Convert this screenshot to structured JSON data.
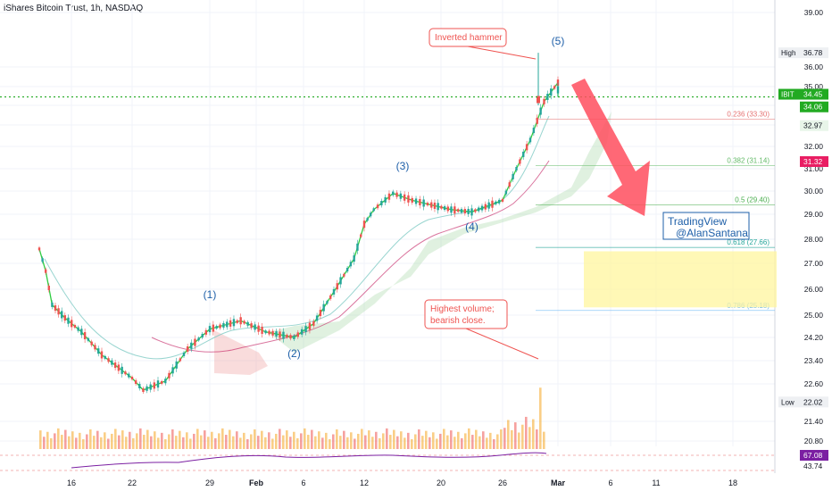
{
  "header": {
    "title": "iShares Bitcoin Trust, 1h, NASDAQ"
  },
  "colors": {
    "up": "#26a69a",
    "down": "#ef5350",
    "ma_fast": "#2ecc40",
    "ma_slow": "#c2185b",
    "cloud_up": "#a5d6a7",
    "cloud_down": "#ef9a9a",
    "price_line": "#22aa22",
    "fib_0236": "#e57373",
    "fib_0382": "#66bb6a",
    "fib_05": "#4caf50",
    "fib_0618": "#26a69a",
    "fib_0786": "#64b5f6",
    "arrow": "#ff4d5e",
    "box": "#fff59d",
    "wave": "#1e5fa8"
  },
  "chart_data": {
    "type": "line",
    "title": "iShares Bitcoin Trust, 1h, NASDAQ",
    "x_ticks": [
      "16",
      "22",
      "29",
      "Feb",
      "6",
      "12",
      "20",
      "26",
      "Mar",
      "6",
      "11",
      "18"
    ],
    "y_ticks": [
      20.8,
      21.4,
      22.6,
      23.4,
      24.2,
      25.0,
      26.0,
      27.0,
      28.0,
      29.0,
      30.0,
      31.0,
      32.0,
      33.0,
      34.0,
      35.0,
      36.0,
      39.0
    ],
    "price_path": [
      {
        "x": "Jan 11",
        "y": 27.6
      },
      {
        "x": "Jan 12",
        "y": 26.7
      },
      {
        "x": "Jan 13",
        "y": 25.4
      },
      {
        "x": "Jan 15",
        "y": 24.9
      },
      {
        "x": "Jan 17",
        "y": 24.4
      },
      {
        "x": "Jan 19",
        "y": 23.6
      },
      {
        "x": "Jan 22",
        "y": 22.8
      },
      {
        "x": "Jan 23",
        "y": 22.4
      },
      {
        "x": "Jan 25",
        "y": 22.7
      },
      {
        "x": "Jan 27",
        "y": 23.8
      },
      {
        "x": "Jan 29",
        "y": 24.5
      },
      {
        "x": "Jan 31",
        "y": 24.8
      },
      {
        "x": "Feb 2",
        "y": 24.4
      },
      {
        "x": "Feb 5",
        "y": 24.2
      },
      {
        "x": "Feb 7",
        "y": 24.7
      },
      {
        "x": "Feb 9",
        "y": 25.9
      },
      {
        "x": "Feb 11",
        "y": 27.2
      },
      {
        "x": "Feb 12",
        "y": 28.6
      },
      {
        "x": "Feb 13",
        "y": 29.2
      },
      {
        "x": "Feb 15",
        "y": 29.9
      },
      {
        "x": "Feb 17",
        "y": 29.6
      },
      {
        "x": "Feb 19",
        "y": 29.4
      },
      {
        "x": "Feb 21",
        "y": 29.2
      },
      {
        "x": "Feb 23",
        "y": 29.1
      },
      {
        "x": "Feb 26",
        "y": 29.6
      },
      {
        "x": "Feb 27",
        "y": 31.0
      },
      {
        "x": "Feb 28",
        "y": 32.3
      },
      {
        "x": "Feb 29",
        "y": 34.2
      },
      {
        "x": "Mar 1",
        "y": 35.2
      },
      {
        "x": "Mar 1",
        "y": 34.45
      }
    ],
    "price_axis_labels": [
      {
        "label": "High",
        "value": "36.78"
      },
      {
        "label": "IBIT",
        "value": "34.45"
      },
      {
        "label": "",
        "value": "34.06"
      },
      {
        "label": "",
        "value": "32.97"
      },
      {
        "label": "",
        "value": "31.32"
      },
      {
        "label": "Low",
        "value": "22.02"
      }
    ],
    "fib_levels": [
      {
        "label": "0.236 (33.30)",
        "price": 33.3
      },
      {
        "label": "0.382 (31.14)",
        "price": 31.14
      },
      {
        "label": "0.5 (29.40)",
        "price": 29.4
      },
      {
        "label": "0.618 (27.66)",
        "price": 27.66
      },
      {
        "label": "0.786 (25.18)",
        "price": 25.18
      }
    ],
    "waves": [
      {
        "label": "(1)",
        "x": "Jan 29"
      },
      {
        "label": "(2)",
        "x": "Feb 5"
      },
      {
        "label": "(3)",
        "x": "Feb 16"
      },
      {
        "label": "(4)",
        "x": "Feb 23"
      },
      {
        "label": "(5)",
        "x": "Mar 1"
      }
    ],
    "annotations": {
      "inverted_hammer": "Inverted hammer",
      "highest_volume": "Highest volume;\nbearish close.",
      "watermark_line1": "TradingView",
      "watermark_line2": "@AlanSantana"
    },
    "target_zone": {
      "from": 25.3,
      "to": 27.5
    },
    "rsi_labels": [
      {
        "value": "67.08"
      },
      {
        "value": "43.74"
      }
    ]
  }
}
